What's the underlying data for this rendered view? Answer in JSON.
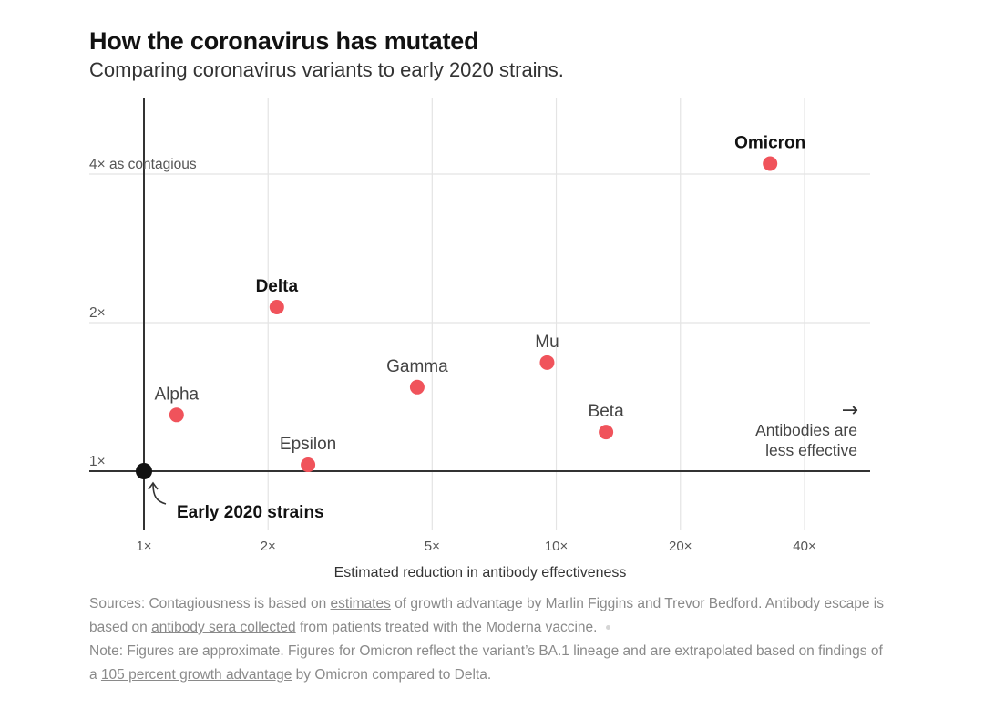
{
  "title": "How the coronavirus has mutated",
  "subtitle": "Comparing coronavirus variants to early 2020 strains.",
  "chart_data": {
    "type": "scatter",
    "xlabel": "Estimated reduction in antibody effectiveness",
    "ylabel": "",
    "x_scale": "log",
    "y_scale": "log",
    "xlim": [
      0.88,
      65
    ],
    "ylim": [
      0.72,
      5.2
    ],
    "x_ticks": [
      {
        "value": 1,
        "label": "1×"
      },
      {
        "value": 2,
        "label": "2×"
      },
      {
        "value": 5,
        "label": "5×"
      },
      {
        "value": 10,
        "label": "10×"
      },
      {
        "value": 20,
        "label": "20×"
      },
      {
        "value": 40,
        "label": "40×"
      }
    ],
    "y_ticks": [
      {
        "value": 1,
        "label": "1×"
      },
      {
        "value": 2,
        "label": "2×"
      },
      {
        "value": 4,
        "label": "4× as contagious"
      }
    ],
    "grid": true,
    "points": [
      {
        "name": "Alpha",
        "x": 1.2,
        "y": 1.3,
        "bold": false,
        "label_pos": "above"
      },
      {
        "name": "Delta",
        "x": 2.1,
        "y": 2.15,
        "bold": true,
        "label_pos": "above"
      },
      {
        "name": "Epsilon",
        "x": 2.5,
        "y": 1.03,
        "bold": false,
        "label_pos": "above"
      },
      {
        "name": "Gamma",
        "x": 4.6,
        "y": 1.48,
        "bold": false,
        "label_pos": "above"
      },
      {
        "name": "Mu",
        "x": 9.5,
        "y": 1.66,
        "bold": false,
        "label_pos": "above"
      },
      {
        "name": "Beta",
        "x": 13.2,
        "y": 1.2,
        "bold": false,
        "label_pos": "above"
      },
      {
        "name": "Omicron",
        "x": 33,
        "y": 4.2,
        "bold": true,
        "label_pos": "above"
      }
    ],
    "origin": {
      "name": "Early 2020 strains",
      "x": 1,
      "y": 1
    },
    "annotation": {
      "arrow": "→",
      "lines": [
        "Antibodies are",
        "less effective"
      ]
    },
    "colors": {
      "point": "#f0535b",
      "origin": "#121212",
      "grid": "#e4e4e4",
      "axis": "#333333"
    }
  },
  "notes": {
    "sources_prefix": "Sources: Contagiousness is based on ",
    "sources_link1": "estimates",
    "sources_mid1": " of growth advantage by Marlin Figgins and Trevor Bedford. Antibody escape is based on ",
    "sources_link2": "antibody sera collected",
    "sources_suffix": " from patients treated with the Moderna vaccine.",
    "note_prefix": "Note: Figures are approximate. Figures for Omicron reflect the variant’s BA.1 lineage and are extrapolated based on findings of a ",
    "note_link": "105 percent growth advantage",
    "note_suffix": " by Omicron compared to Delta."
  }
}
